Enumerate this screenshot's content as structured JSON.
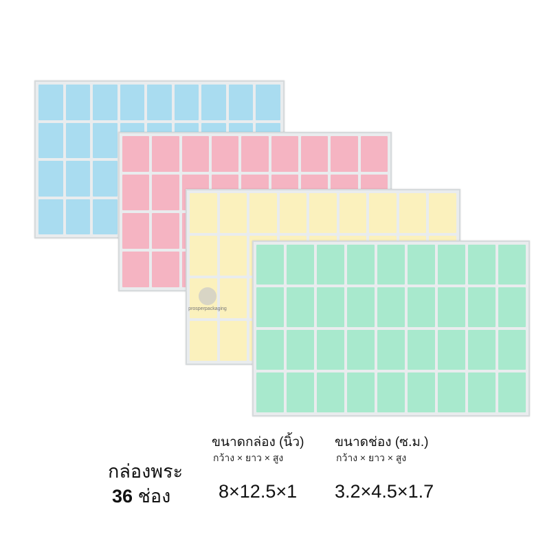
{
  "product": {
    "title": "กล่องพระ",
    "slot_count": "36",
    "slot_label": "ช่อง",
    "grid": {
      "columns": 9,
      "rows": 4
    }
  },
  "trays": [
    {
      "name": "blue",
      "color": "#a9dcf0"
    },
    {
      "name": "pink",
      "color": "#f5b4c2"
    },
    {
      "name": "yellow",
      "color": "#fbf1bd"
    },
    {
      "name": "green",
      "color": "#a8e9cd"
    }
  ],
  "box_size": {
    "heading": "ขนาดกล่อง (นิ้ว)",
    "dims_label": "กว้าง × ยาว × สูง",
    "value": "8×12.5×1"
  },
  "slot_size": {
    "heading": "ขนาดช่อง (ซ.ม.)",
    "dims_label": "กว้าง × ยาว × สูง",
    "value": "3.2×4.5×1.7"
  },
  "watermark": "prosperpackaging"
}
